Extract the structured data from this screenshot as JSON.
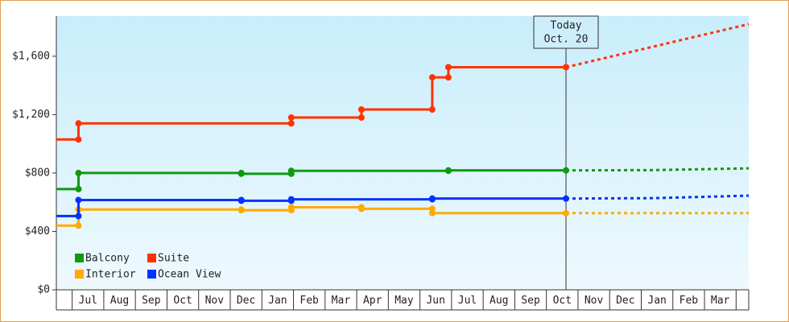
{
  "chart_data": {
    "type": "step",
    "categories": [
      null,
      "Jul",
      "Aug",
      "Sep",
      "Oct",
      "Nov",
      "Dec",
      "Jan",
      "Feb",
      "Mar",
      "Apr",
      "May",
      "Jun",
      "Jul",
      "Aug",
      "Sep",
      "Oct",
      "Nov",
      "Dec",
      "Jan",
      "Feb",
      "Mar",
      null
    ],
    "xlim": [
      -0.5,
      21.4
    ],
    "ylim": [
      0,
      1875
    ],
    "yticks": [
      {
        "value": 0,
        "label": "$0"
      },
      {
        "value": 400,
        "label": "$400"
      },
      {
        "value": 800,
        "label": "$800"
      },
      {
        "value": 1200,
        "label": "$1,200"
      },
      {
        "value": 1600,
        "label": "$1,600"
      }
    ],
    "annotation": {
      "x": 15.62,
      "lines": [
        "Today",
        "Oct. 20"
      ]
    },
    "legend": "lower left",
    "series": [
      {
        "name": "Balcony",
        "color": "#119911",
        "x": [
          -0.5,
          0.2,
          0.2,
          5.35,
          5.35,
          6.93,
          6.93,
          11.9,
          11.9,
          15.62
        ],
        "values": [
          690,
          690,
          800,
          800,
          795,
          795,
          815,
          815,
          818,
          818
        ],
        "forecast_x": [
          15.62,
          18.4,
          21.4
        ],
        "forecast_values": [
          818,
          820,
          832
        ]
      },
      {
        "name": "Suite",
        "color": "#ff3300",
        "x": [
          -0.5,
          0.2,
          0.2,
          6.93,
          6.93,
          9.15,
          9.15,
          11.39,
          11.39,
          11.9,
          11.9,
          15.62
        ],
        "values": [
          1030,
          1030,
          1140,
          1140,
          1180,
          1180,
          1235,
          1235,
          1455,
          1455,
          1525,
          1525
        ],
        "forecast_x": [
          15.62,
          21.4
        ],
        "forecast_values": [
          1525,
          1820
        ]
      },
      {
        "name": "Interior",
        "color": "#ffaa00",
        "x": [
          -0.5,
          0.2,
          0.2,
          5.35,
          5.35,
          6.93,
          6.93,
          9.15,
          9.15,
          11.39,
          11.39,
          15.62
        ],
        "values": [
          440,
          440,
          550,
          550,
          545,
          545,
          565,
          565,
          555,
          555,
          525,
          525
        ],
        "forecast_x": [
          15.62,
          21.4
        ],
        "forecast_values": [
          525,
          525
        ]
      },
      {
        "name": "Ocean View",
        "color": "#0033ff",
        "x": [
          -0.5,
          0.2,
          0.2,
          5.35,
          5.35,
          6.93,
          6.93,
          11.39,
          11.39,
          15.62
        ],
        "values": [
          505,
          505,
          615,
          615,
          610,
          610,
          620,
          620,
          625,
          625
        ],
        "forecast_x": [
          15.62,
          18.4,
          21.4
        ],
        "forecast_values": [
          625,
          628,
          645
        ]
      }
    ]
  }
}
